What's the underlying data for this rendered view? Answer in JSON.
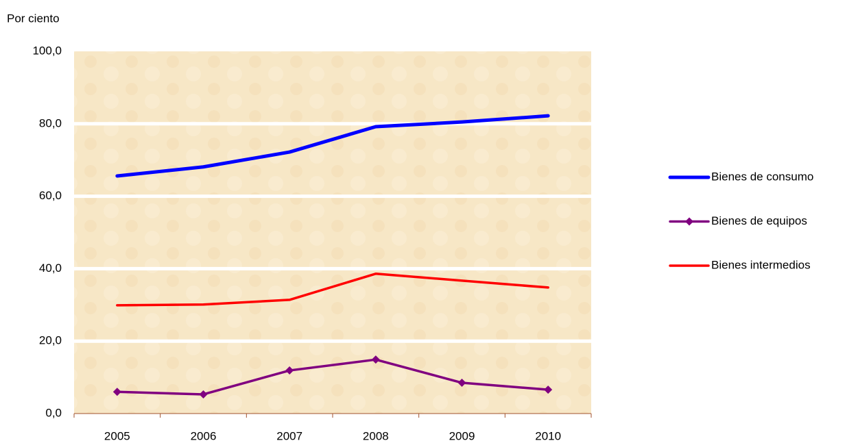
{
  "chart_data": {
    "type": "line",
    "y_label": "Por ciento",
    "categories": [
      "2005",
      "2006",
      "2007",
      "2008",
      "2009",
      "2010"
    ],
    "series": [
      {
        "name": "Bienes de consumo",
        "color": "#0000ff",
        "values": [
          65.6,
          68.1,
          72.2,
          79.2,
          80.5,
          82.2
        ]
      },
      {
        "name": "Bienes de equipos",
        "color": "#800080",
        "marker": "diamond",
        "values": [
          6.0,
          5.3,
          11.9,
          14.9,
          8.5,
          6.6
        ]
      },
      {
        "name": "Bienes intermedios",
        "color": "#ff0000",
        "values": [
          29.9,
          30.1,
          31.4,
          38.6,
          36.7,
          34.8
        ]
      }
    ],
    "ylim": [
      0,
      100
    ],
    "yticks": [
      {
        "value": 0,
        "label": "0,0"
      },
      {
        "value": 20,
        "label": "20,0"
      },
      {
        "value": 40,
        "label": "40,0"
      },
      {
        "value": 60,
        "label": "60,0"
      },
      {
        "value": 80,
        "label": "80,0"
      },
      {
        "value": 100,
        "label": "100,0"
      }
    ],
    "grid": true,
    "legend": "right"
  }
}
